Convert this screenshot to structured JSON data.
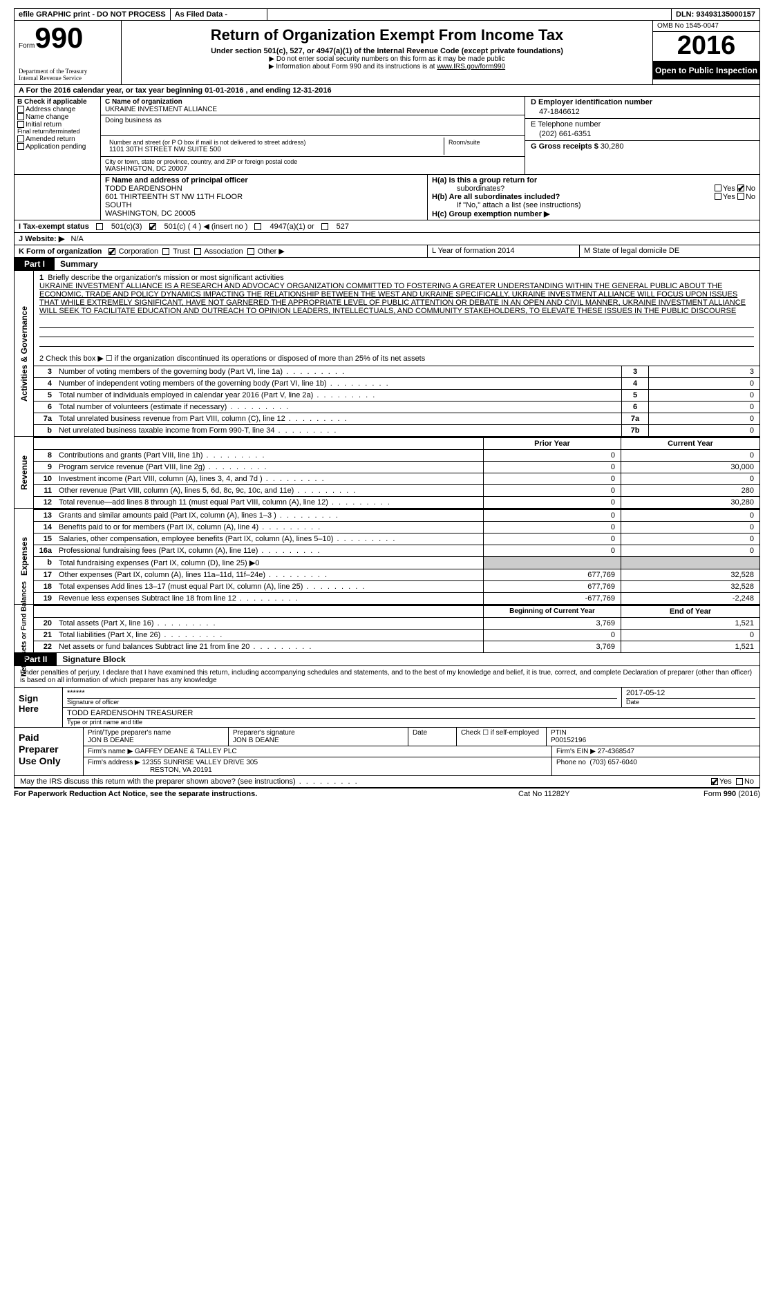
{
  "topbar": {
    "efile": "efile GRAPHIC print - DO NOT PROCESS",
    "asfiled": "As Filed Data -",
    "dln": "DLN: 93493135000157"
  },
  "header": {
    "form_label": "Form",
    "form_no": "990",
    "dept1": "Department of the Treasury",
    "dept2": "Internal Revenue Service",
    "title": "Return of Organization Exempt From Income Tax",
    "sub": "Under section 501(c), 527, or 4947(a)(1) of the Internal Revenue Code (except private foundations)",
    "note1": "▶ Do not enter social security numbers on this form as it may be made public",
    "note2_a": "▶ Information about Form 990 and its instructions is at ",
    "note2_link": "www.IRS.gov/form990",
    "omb": "OMB No  1545-0047",
    "year": "2016",
    "open": "Open to Public Inspection"
  },
  "rowA": "A   For the 2016 calendar year, or tax year beginning 01-01-2016   , and ending 12-31-2016",
  "colB": {
    "hdr": "B Check if applicable",
    "items": [
      "Address change",
      "Name change",
      "Initial return",
      "Final return/terminated",
      "Amended return",
      "Application pending"
    ]
  },
  "boxC": {
    "lbl_name": "C Name of organization",
    "org": "UKRAINE INVESTMENT ALLIANCE",
    "dba_lbl": "Doing business as",
    "addr_lbl": "Number and street (or P O  box if mail is not delivered to street address)",
    "room_lbl": "Room/suite",
    "addr": "1101 30TH STREET NW SUITE 500",
    "city_lbl": "City or town, state or province, country, and ZIP or foreign postal code",
    "city": "WASHINGTON, DC  20007"
  },
  "boxD": {
    "lbl": "D Employer identification number",
    "val": "47-1846612"
  },
  "boxE": {
    "lbl": "E Telephone number",
    "val": "(202) 661-6351"
  },
  "boxG": {
    "lbl": "G Gross receipts $",
    "val": "30,280"
  },
  "boxF": {
    "lbl": "F  Name and address of principal officer",
    "name": "TODD EARDENSOHN",
    "l1": "601 THIRTEENTH ST NW 11TH FLOOR",
    "l2": "SOUTH",
    "l3": "WASHINGTON, DC  20005"
  },
  "boxH": {
    "a": "H(a)  Is this a group return for",
    "a2": "subordinates?",
    "b": "H(b)  Are all subordinates included?",
    "bnote": "If \"No,\" attach a list  (see instructions)",
    "c": "H(c)  Group exemption number ▶",
    "yes": "Yes",
    "no": "No"
  },
  "rowI": {
    "lbl": "I   Tax-exempt status",
    "o1": "501(c)(3)",
    "o2": "501(c) ( 4 ) ◀ (insert no )",
    "o3": "4947(a)(1) or",
    "o4": "527"
  },
  "rowJ": {
    "lbl": "J   Website: ▶",
    "val": "N/A"
  },
  "rowK": {
    "lbl": "K Form of organization",
    "o1": "Corporation",
    "o2": "Trust",
    "o3": "Association",
    "o4": "Other ▶",
    "L": "L Year of formation  2014",
    "M": "M State of legal domicile  DE"
  },
  "part1": {
    "tab": "Part I",
    "title": "Summary"
  },
  "mission": {
    "n": "1",
    "lbl": "Briefly describe the organization's mission or most significant activities",
    "txt": "UKRAINE INVESTMENT ALLIANCE IS A RESEARCH AND ADVOCACY ORGANIZATION COMMITTED TO FOSTERING A GREATER UNDERSTANDING WITHIN THE GENERAL PUBLIC ABOUT THE ECONOMIC, TRADE AND POLICY DYNAMICS IMPACTING THE RELATIONSHIP BETWEEN THE WEST AND UKRAINE  SPECIFICALLY, UKRAINE INVESTMENT ALLIANCE WILL FOCUS UPON ISSUES THAT WHILE EXTREMELY SIGNIFICANT, HAVE NOT GARNERED THE APPROPRIATE LEVEL OF PUBLIC ATTENTION OR DEBATE  IN AN OPEN AND CIVIL MANNER, UKRAINE INVESTMENT ALLIANCE WILL SEEK TO FACILITATE EDUCATION AND OUTREACH TO  OPINION LEADERS, INTELLECTUALS, AND COMMUNITY STAKEHOLDERS, TO ELEVATE THESE ISSUES IN THE PUBLIC DISCOURSE"
  },
  "line2": "2   Check this box ▶ ☐  if the organization discontinued its operations or disposed of more than 25% of its net assets",
  "govrows": [
    {
      "n": "3",
      "d": "Number of voting members of the governing body (Part VI, line 1a)",
      "cn": "3",
      "v": "3"
    },
    {
      "n": "4",
      "d": "Number of independent voting members of the governing body (Part VI, line 1b)",
      "cn": "4",
      "v": "0"
    },
    {
      "n": "5",
      "d": "Total number of individuals employed in calendar year 2016 (Part V, line 2a)",
      "cn": "5",
      "v": "0"
    },
    {
      "n": "6",
      "d": "Total number of volunteers (estimate if necessary)",
      "cn": "6",
      "v": "0"
    },
    {
      "n": "7a",
      "d": "Total unrelated business revenue from Part VIII, column (C), line 12",
      "cn": "7a",
      "v": "0"
    },
    {
      "n": "b",
      "d": "Net unrelated business taxable income from Form 990-T, line 34",
      "cn": "7b",
      "v": "0"
    }
  ],
  "col_prior": "Prior Year",
  "col_curr": "Current Year",
  "revrows": [
    {
      "n": "8",
      "d": "Contributions and grants (Part VIII, line 1h)",
      "c1": "0",
      "c2": "0"
    },
    {
      "n": "9",
      "d": "Program service revenue (Part VIII, line 2g)",
      "c1": "0",
      "c2": "30,000"
    },
    {
      "n": "10",
      "d": "Investment income (Part VIII, column (A), lines 3, 4, and 7d )",
      "c1": "0",
      "c2": "0"
    },
    {
      "n": "11",
      "d": "Other revenue (Part VIII, column (A), lines 5, 6d, 8c, 9c, 10c, and 11e)",
      "c1": "0",
      "c2": "280"
    },
    {
      "n": "12",
      "d": "Total revenue—add lines 8 through 11 (must equal Part VIII, column (A), line 12)",
      "c1": "0",
      "c2": "30,280"
    }
  ],
  "exprows": [
    {
      "n": "13",
      "d": "Grants and similar amounts paid (Part IX, column (A), lines 1–3 )",
      "c1": "0",
      "c2": "0"
    },
    {
      "n": "14",
      "d": "Benefits paid to or for members (Part IX, column (A), line 4)",
      "c1": "0",
      "c2": "0"
    },
    {
      "n": "15",
      "d": "Salaries, other compensation, employee benefits (Part IX, column (A), lines 5–10)",
      "c1": "0",
      "c2": "0"
    },
    {
      "n": "16a",
      "d": "Professional fundraising fees (Part IX, column (A), line 11e)",
      "c1": "0",
      "c2": "0"
    },
    {
      "n": "b",
      "d": "Total fundraising expenses (Part IX, column (D), line 25) ▶0",
      "c1": "",
      "c2": ""
    },
    {
      "n": "17",
      "d": "Other expenses (Part IX, column (A), lines 11a–11d, 11f–24e)",
      "c1": "677,769",
      "c2": "32,528"
    },
    {
      "n": "18",
      "d": "Total expenses  Add lines 13–17 (must equal Part IX, column (A), line 25)",
      "c1": "677,769",
      "c2": "32,528"
    },
    {
      "n": "19",
      "d": "Revenue less expenses  Subtract line 18 from line 12",
      "c1": "-677,769",
      "c2": "-2,248"
    }
  ],
  "col_boy": "Beginning of Current Year",
  "col_eoy": "End of Year",
  "netrows": [
    {
      "n": "20",
      "d": "Total assets (Part X, line 16)",
      "c1": "3,769",
      "c2": "1,521"
    },
    {
      "n": "21",
      "d": "Total liabilities (Part X, line 26)",
      "c1": "0",
      "c2": "0"
    },
    {
      "n": "22",
      "d": "Net assets or fund balances  Subtract line 21 from line 20",
      "c1": "3,769",
      "c2": "1,521"
    }
  ],
  "vtabs": {
    "gov": "Activities & Governance",
    "rev": "Revenue",
    "exp": "Expenses",
    "net": "Net Assets or\nFund Balances"
  },
  "part2": {
    "tab": "Part II",
    "title": "Signature Block"
  },
  "sig_intro": "Under penalties of perjury, I declare that I have examined this return, including accompanying schedules and statements, and to the best of my knowledge and belief, it is true, correct, and complete  Declaration of preparer (other than officer) is based on all information of which preparer has any knowledge",
  "sign": {
    "lbl": "Sign Here",
    "stars": "******",
    "sig_lbl": "Signature of officer",
    "date": "2017-05-12",
    "date_lbl": "Date",
    "name": "TODD EARDENSOHN TREASURER",
    "name_lbl": "Type or print name and title"
  },
  "prep": {
    "lbl": "Paid Preparer Use Only",
    "h_name": "Print/Type preparer's name",
    "name": "JON B DEANE",
    "h_sig": "Preparer's signature",
    "sig": "JON B DEANE",
    "h_date": "Date",
    "h_chk": "Check ☐ if self-employed",
    "h_ptin": "PTIN",
    "ptin": "P00152196",
    "h_firm": "Firm's name    ▶",
    "firm": "GAFFEY DEANE & TALLEY PLC",
    "h_ein": "Firm's EIN ▶",
    "ein": "27-4368547",
    "h_addr": "Firm's address ▶",
    "addr1": "12355 SUNRISE VALLEY DRIVE 305",
    "addr2": "RESTON, VA  20191",
    "h_phone": "Phone no",
    "phone": "(703) 657-6040"
  },
  "discuss": {
    "q": "May the IRS discuss this return with the preparer shown above? (see instructions)",
    "yes": "Yes",
    "no": "No"
  },
  "footer": {
    "l": "For Paperwork Reduction Act Notice, see the separate instructions.",
    "m": "Cat No  11282Y",
    "r": "Form 990 (2016)"
  }
}
